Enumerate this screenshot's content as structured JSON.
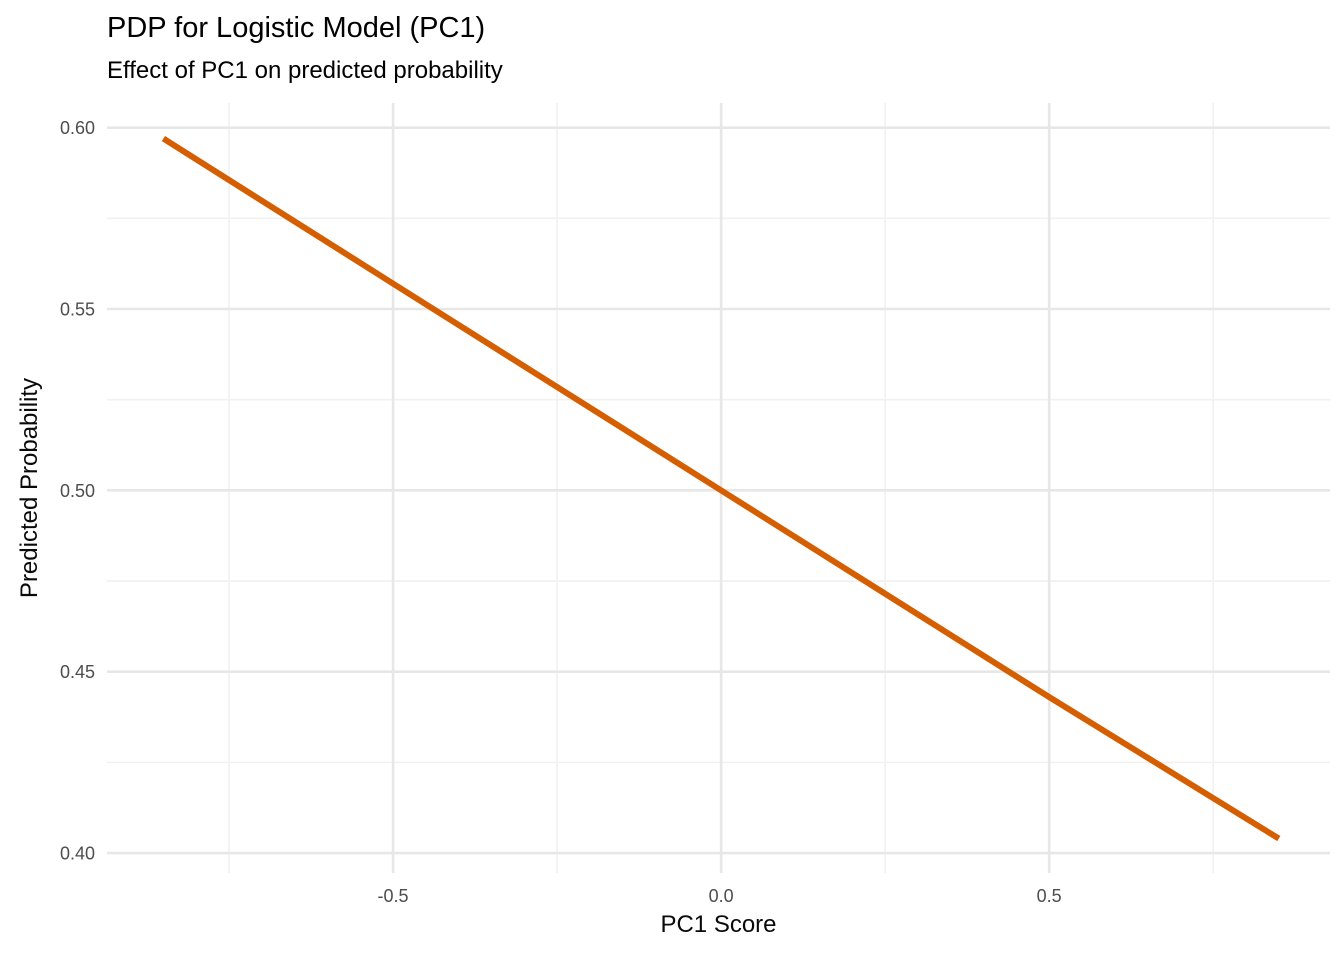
{
  "page": {
    "background": "#FFFFFF"
  },
  "chart_data": {
    "type": "line",
    "title": "PDP for Logistic Model (PC1)",
    "subtitle": "Effect of PC1 on predicted probability",
    "xlabel": "PC1 Score",
    "ylabel": "Predicted Probability",
    "series": [
      {
        "name": "pdp-curve",
        "color": "#D55E00",
        "x": [
          -0.85,
          -0.5,
          0.0,
          0.5,
          0.85
        ],
        "y": [
          0.597,
          0.557,
          0.5,
          0.443,
          0.404
        ]
      }
    ],
    "x_ticks": {
      "values": [
        -0.5,
        0.0,
        0.5
      ],
      "labels": [
        "-0.5",
        "0.0",
        "0.5"
      ]
    },
    "y_ticks": {
      "values": [
        0.4,
        0.45,
        0.5,
        0.55,
        0.6
      ],
      "labels": [
        "0.40",
        "0.45",
        "0.50",
        "0.55",
        "0.60"
      ]
    },
    "x_minor": [
      -0.75,
      -0.25,
      0.25,
      0.75
    ],
    "y_minor": [
      0.425,
      0.475,
      0.525,
      0.575
    ],
    "xlim": [
      -0.936,
      0.928
    ],
    "ylim": [
      0.3945,
      0.6068
    ],
    "grid": "major-and-minor",
    "legend": "none",
    "style": {
      "grid_major_color": "#E7E7E7",
      "grid_minor_color": "#F1F1F1",
      "tick_text_color": "#4D4D4D",
      "line_color": "#D55E00"
    }
  }
}
